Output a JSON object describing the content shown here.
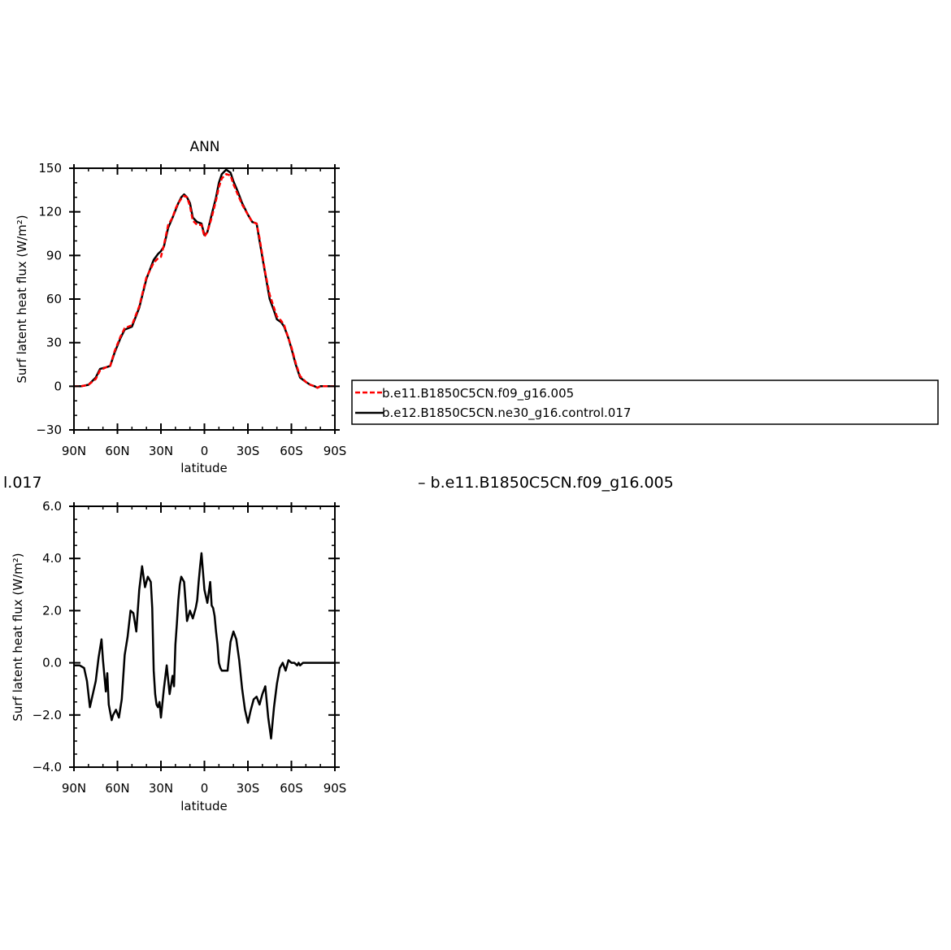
{
  "top_left_fragment": "l.017",
  "diff_label": "– b.e11.B1850C5CN.f09_g16.005",
  "chart_data": [
    {
      "type": "line",
      "title": "ANN",
      "xlabel": "latitude",
      "ylabel": "Surf latent heat flux (W/m²)",
      "xlim": [
        -90,
        90
      ],
      "ylim": [
        -30,
        150
      ],
      "xticks": [
        "90N",
        "60N",
        "30N",
        "0",
        "30S",
        "60S",
        "90S"
      ],
      "yticks": [
        "−30",
        "0",
        "30",
        "60",
        "90",
        "120",
        "150"
      ],
      "x": [
        -90,
        -85,
        -80,
        -75,
        -72,
        -68,
        -65,
        -62,
        -58,
        -55,
        -50,
        -45,
        -40,
        -35,
        -32,
        -30,
        -28,
        -25,
        -22,
        -20,
        -18,
        -16,
        -14,
        -12,
        -10,
        -8,
        -5,
        -2,
        0,
        2,
        5,
        8,
        10,
        12,
        15,
        18,
        20,
        23,
        26,
        30,
        33,
        36,
        38,
        42,
        45,
        48,
        50,
        53,
        55,
        58,
        60,
        63,
        66,
        70,
        73,
        76,
        78,
        80,
        85,
        90
      ],
      "series": [
        {
          "name": "b.e11.B1850C5CN.f09_g16.005",
          "color": "#ff0000",
          "dash": "6,3",
          "values": [
            0,
            0,
            1,
            5,
            11,
            13,
            14,
            24,
            34,
            40,
            42,
            55,
            75,
            85,
            88,
            89,
            97,
            111,
            116,
            122,
            126,
            129,
            131,
            130,
            124,
            114,
            111,
            111,
            103,
            106,
            116,
            128,
            137,
            143,
            146,
            145,
            139,
            132,
            125,
            118,
            113,
            112,
            102,
            78,
            63,
            54,
            48,
            45,
            42,
            33,
            27,
            16,
            7,
            3,
            1,
            0,
            -1,
            0,
            0,
            0
          ]
        },
        {
          "name": "b.e12.B1850C5CN.ne30_g16.control.017",
          "color": "#000000",
          "dash": "",
          "values": [
            0,
            0,
            1,
            6,
            12,
            13,
            14,
            23,
            33,
            39,
            41,
            54,
            74,
            87,
            91,
            93,
            96,
            109,
            116,
            121,
            126,
            130,
            132,
            130,
            126,
            116,
            113,
            112,
            104,
            106,
            118,
            130,
            140,
            146,
            149,
            147,
            141,
            134,
            126,
            118,
            113,
            112,
            100,
            77,
            60,
            52,
            46,
            44,
            41,
            33,
            26,
            15,
            6,
            3,
            1,
            0,
            -1,
            0,
            0,
            0
          ]
        }
      ],
      "legend_position": "right, outside plot"
    },
    {
      "type": "line",
      "title": "",
      "xlabel": "latitude",
      "ylabel": "Surf latent heat flux (W/m²)",
      "xlim": [
        -90,
        90
      ],
      "ylim": [
        -4,
        6
      ],
      "xticks": [
        "90N",
        "60N",
        "30N",
        "0",
        "30S",
        "60S",
        "90S"
      ],
      "yticks": [
        "−4.0",
        "−2.0",
        "0.0",
        "2.0",
        "4.0",
        "6.0"
      ],
      "x": [
        -90,
        -86,
        -83,
        -81,
        -79,
        -77,
        -75,
        -73,
        -71,
        -70,
        -68,
        -67,
        -66,
        -64,
        -63,
        -61,
        -59,
        -57,
        -55,
        -53,
        -51,
        -49,
        -47,
        -45,
        -43,
        -41,
        -39,
        -37,
        -36,
        -35,
        -34,
        -33,
        -32,
        -31,
        -30,
        -28,
        -26,
        -24,
        -22,
        -21,
        -20,
        -19,
        -18,
        -17,
        -16,
        -14,
        -12,
        -10,
        -8,
        -6,
        -5,
        -4,
        -3,
        -2,
        0,
        2,
        4,
        5,
        6,
        7,
        8,
        9,
        10,
        11,
        12,
        14,
        16,
        18,
        20,
        22,
        24,
        26,
        28,
        30,
        32,
        34,
        36,
        38,
        40,
        42,
        44,
        46,
        48,
        50,
        52,
        54,
        56,
        58,
        60,
        62,
        64,
        65,
        66,
        68,
        70,
        72,
        74,
        76,
        78,
        80,
        82,
        84,
        86,
        88,
        90
      ],
      "series": [
        {
          "name": "",
          "color": "#000000",
          "dash": "",
          "values": [
            -0.1,
            -0.1,
            -0.2,
            -0.7,
            -1.7,
            -1.2,
            -0.7,
            0.2,
            0.9,
            0.1,
            -1.1,
            -0.4,
            -1.6,
            -2.2,
            -2.0,
            -1.8,
            -2.1,
            -1.4,
            0.3,
            1.0,
            2.0,
            1.9,
            1.2,
            2.8,
            3.7,
            2.9,
            3.3,
            3.1,
            2.1,
            -0.3,
            -1.2,
            -1.6,
            -1.7,
            -1.5,
            -2.1,
            -1.0,
            -0.1,
            -1.2,
            -0.5,
            -0.9,
            0.7,
            1.5,
            2.4,
            3.0,
            3.3,
            3.1,
            1.6,
            2.0,
            1.7,
            2.1,
            2.4,
            3.1,
            3.7,
            4.2,
            2.8,
            2.3,
            3.1,
            2.2,
            2.1,
            1.8,
            1.2,
            0.7,
            0.0,
            -0.2,
            -0.3,
            -0.3,
            -0.3,
            0.8,
            1.2,
            0.9,
            0.1,
            -1.0,
            -1.8,
            -2.3,
            -1.8,
            -1.4,
            -1.3,
            -1.6,
            -1.2,
            -0.9,
            -2.1,
            -2.9,
            -1.7,
            -0.8,
            -0.2,
            0.0,
            -0.3,
            0.1,
            0.0,
            0.0,
            -0.1,
            0.0,
            -0.1,
            0.0,
            0.0,
            0.0,
            0.0,
            0.0,
            0.0,
            0.0,
            0.0,
            0.0,
            0.0,
            0.0,
            0.0
          ]
        }
      ]
    }
  ]
}
